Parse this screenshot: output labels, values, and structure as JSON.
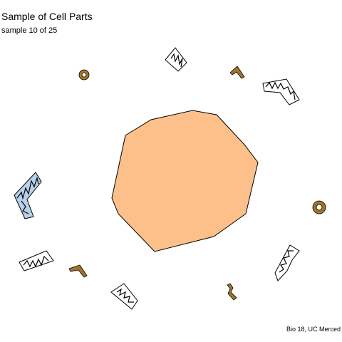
{
  "title": "Sample of Cell Parts",
  "subtitle": "sample 10 of 25",
  "caption": "Bio 18, UC Merced",
  "colors": {
    "nucleus_fill": "#FDC08A",
    "golgi_fill": "#A07528",
    "mito_fill_light": "#FFFFFF",
    "mito_fill_blue": "#B8D0E8",
    "outline": "#000000"
  },
  "parts": [
    {
      "kind": "nucleus"
    },
    {
      "kind": "ring-organelle"
    },
    {
      "kind": "ring-organelle"
    },
    {
      "kind": "mitochondrion"
    },
    {
      "kind": "mitochondrion"
    },
    {
      "kind": "mitochondrion"
    },
    {
      "kind": "mitochondrion"
    },
    {
      "kind": "mitochondrion"
    },
    {
      "kind": "mitochondrion"
    },
    {
      "kind": "golgi-fragment"
    },
    {
      "kind": "golgi-fragment"
    },
    {
      "kind": "golgi-fragment"
    }
  ]
}
